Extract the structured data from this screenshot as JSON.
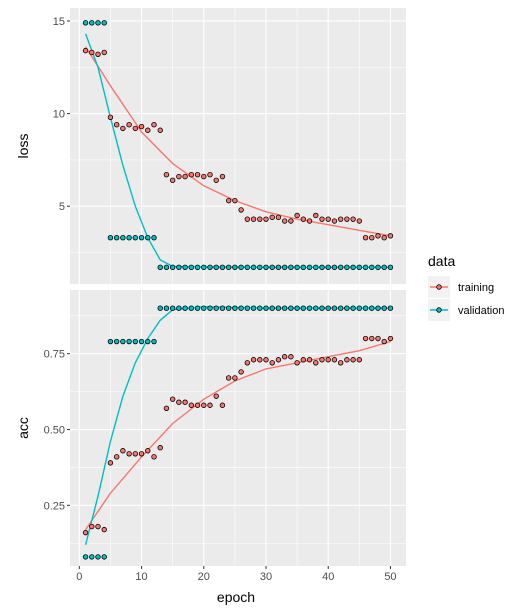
{
  "chart_data": {
    "type": "scatter",
    "xlabel": "epoch",
    "x_ticks": [
      0,
      10,
      20,
      30,
      40,
      50
    ],
    "xlim": [
      -1.5,
      52.5
    ],
    "legend": {
      "title": "data",
      "position": "right",
      "entries": [
        "training",
        "validation"
      ]
    },
    "colors": {
      "training": "#F8766D",
      "validation": "#00BFC4",
      "panel_bg": "#EBEBEB",
      "grid": "#FFFFFF"
    },
    "panels": [
      {
        "ylabel": "loss",
        "ylim": [
          0.8,
          15.7
        ],
        "y_ticks": [
          5,
          10,
          15
        ],
        "y_tick_labels": [
          "5",
          "10",
          "15"
        ],
        "series": [
          {
            "name": "training",
            "values": [
              13.4,
              13.3,
              13.2,
              13.3,
              9.8,
              9.4,
              9.2,
              9.4,
              9.2,
              9.3,
              9.1,
              9.4,
              9.1,
              6.7,
              6.4,
              6.6,
              6.6,
              6.7,
              6.7,
              6.6,
              6.7,
              6.4,
              6.6,
              5.3,
              5.3,
              4.8,
              4.3,
              4.3,
              4.3,
              4.3,
              4.4,
              4.4,
              4.2,
              4.2,
              4.5,
              4.3,
              4.2,
              4.5,
              4.3,
              4.3,
              4.2,
              4.3,
              4.3,
              4.3,
              4.2,
              3.3,
              3.3,
              3.4,
              3.3,
              3.4
            ],
            "smooth": [
              [
                1,
                13.6
              ],
              [
                5,
                11.5
              ],
              [
                10,
                9.0
              ],
              [
                15,
                7.3
              ],
              [
                20,
                6.1
              ],
              [
                25,
                5.3
              ],
              [
                30,
                4.7
              ],
              [
                35,
                4.3
              ],
              [
                40,
                4.0
              ],
              [
                45,
                3.7
              ],
              [
                50,
                3.4
              ]
            ]
          },
          {
            "name": "validation",
            "values": [
              14.9,
              14.9,
              14.9,
              14.9,
              3.3,
              3.3,
              3.3,
              3.3,
              3.3,
              3.3,
              3.3,
              3.3,
              1.7,
              1.7,
              1.7,
              1.7,
              1.7,
              1.7,
              1.7,
              1.7,
              1.7,
              1.7,
              1.7,
              1.7,
              1.7,
              1.7,
              1.7,
              1.7,
              1.7,
              1.7,
              1.7,
              1.7,
              1.7,
              1.7,
              1.7,
              1.7,
              1.7,
              1.7,
              1.7,
              1.7,
              1.7,
              1.7,
              1.7,
              1.7,
              1.7,
              1.7,
              1.7,
              1.7,
              1.7,
              1.7
            ],
            "smooth": [
              [
                1,
                14.3
              ],
              [
                3,
                12.5
              ],
              [
                5,
                9.8
              ],
              [
                7,
                7.2
              ],
              [
                9,
                5.0
              ],
              [
                11,
                3.3
              ],
              [
                13,
                2.1
              ],
              [
                15,
                1.75
              ],
              [
                20,
                1.72
              ],
              [
                30,
                1.7
              ],
              [
                40,
                1.7
              ],
              [
                50,
                1.7
              ]
            ]
          }
        ]
      },
      {
        "ylabel": "acc",
        "ylim": [
          0.05,
          0.96
        ],
        "y_ticks": [
          0.25,
          0.5,
          0.75
        ],
        "y_tick_labels": [
          "0.25",
          "0.50",
          "0.75"
        ],
        "series": [
          {
            "name": "training",
            "values": [
              0.16,
              0.18,
              0.18,
              0.17,
              0.39,
              0.41,
              0.43,
              0.42,
              0.42,
              0.42,
              0.43,
              0.41,
              0.44,
              0.57,
              0.6,
              0.59,
              0.59,
              0.58,
              0.58,
              0.58,
              0.58,
              0.61,
              0.58,
              0.67,
              0.67,
              0.69,
              0.72,
              0.73,
              0.73,
              0.73,
              0.72,
              0.73,
              0.74,
              0.74,
              0.72,
              0.73,
              0.73,
              0.72,
              0.73,
              0.73,
              0.73,
              0.72,
              0.73,
              0.73,
              0.73,
              0.8,
              0.8,
              0.8,
              0.79,
              0.8
            ],
            "smooth": [
              [
                1,
                0.17
              ],
              [
                5,
                0.29
              ],
              [
                10,
                0.41
              ],
              [
                15,
                0.52
              ],
              [
                20,
                0.6
              ],
              [
                25,
                0.66
              ],
              [
                30,
                0.7
              ],
              [
                35,
                0.72
              ],
              [
                40,
                0.74
              ],
              [
                45,
                0.76
              ],
              [
                50,
                0.79
              ]
            ]
          },
          {
            "name": "validation",
            "values": [
              0.08,
              0.08,
              0.08,
              0.08,
              0.79,
              0.79,
              0.79,
              0.79,
              0.79,
              0.79,
              0.79,
              0.79,
              0.9,
              0.9,
              0.9,
              0.9,
              0.9,
              0.9,
              0.9,
              0.9,
              0.9,
              0.9,
              0.9,
              0.9,
              0.9,
              0.9,
              0.9,
              0.9,
              0.9,
              0.9,
              0.9,
              0.9,
              0.9,
              0.9,
              0.9,
              0.9,
              0.9,
              0.9,
              0.9,
              0.9,
              0.9,
              0.9,
              0.9,
              0.9,
              0.9,
              0.9,
              0.9,
              0.9,
              0.9,
              0.9
            ],
            "smooth": [
              [
                1,
                0.12
              ],
              [
                3,
                0.28
              ],
              [
                5,
                0.46
              ],
              [
                7,
                0.61
              ],
              [
                9,
                0.72
              ],
              [
                11,
                0.8
              ],
              [
                13,
                0.86
              ],
              [
                15,
                0.895
              ],
              [
                20,
                0.905
              ],
              [
                30,
                0.9
              ],
              [
                40,
                0.9
              ],
              [
                50,
                0.9
              ]
            ]
          }
        ]
      }
    ]
  }
}
